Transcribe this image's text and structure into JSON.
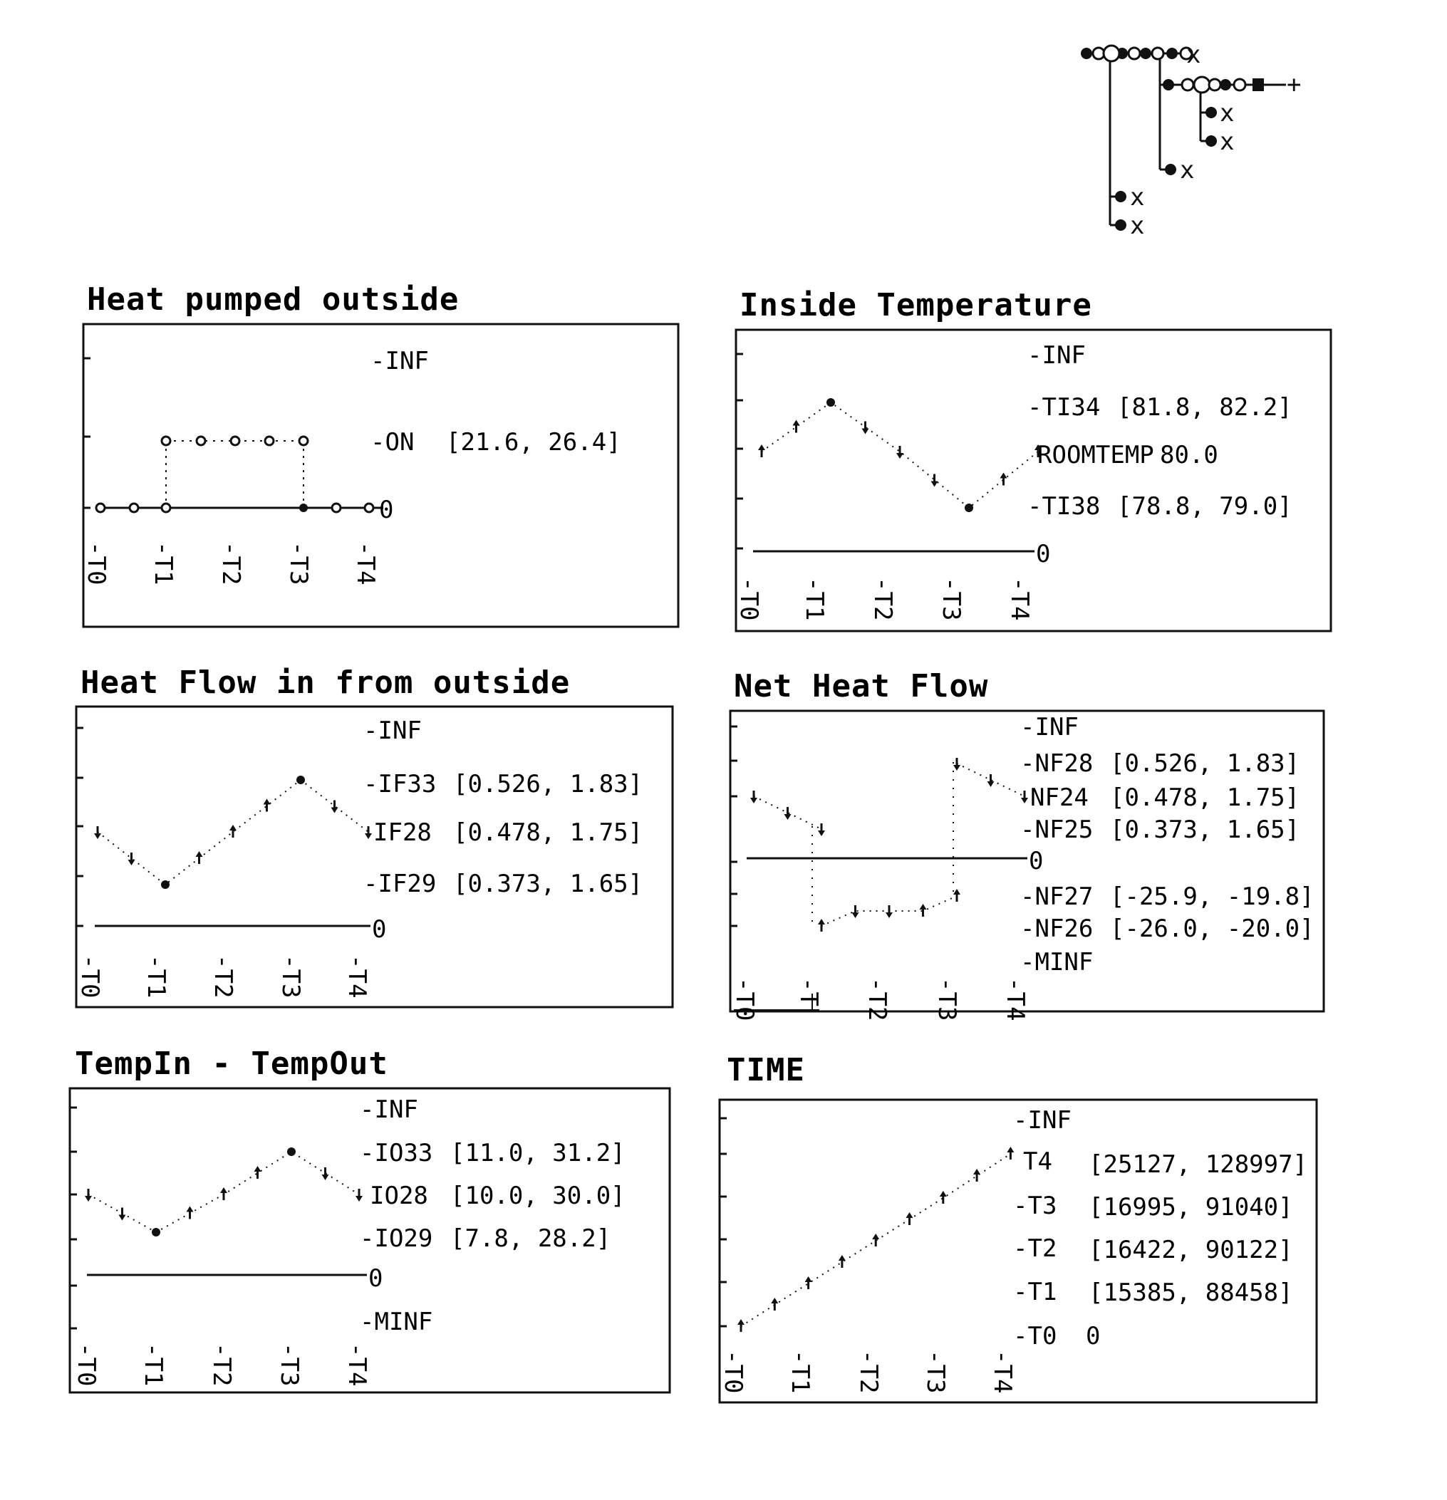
{
  "tree_markers": [
    "x",
    "+",
    "x",
    "x",
    "x",
    "x",
    "x"
  ],
  "panels": [
    {
      "id": "heat-pumped-outside",
      "title": "Heat pumped outside",
      "labels": [
        "-INF",
        "-ON",
        "[21.6, 26.4]",
        "0"
      ],
      "times": [
        "-T0",
        "-T1",
        "-T2",
        "-T3",
        "-T4"
      ]
    },
    {
      "id": "inside-temperature",
      "title": "Inside Temperature",
      "labels": [
        "-INF",
        "-TI34",
        "[81.8, 82.2]",
        "ROOMTEMP",
        "80.0",
        "-TI38",
        "[78.8, 79.0]",
        "0"
      ],
      "times": [
        "-T0",
        "-T1",
        "-T2",
        "-T3",
        "-T4"
      ]
    },
    {
      "id": "heat-flow-in",
      "title": "Heat Flow in from outside",
      "labels": [
        "-INF",
        "-IF33",
        "[0.526, 1.83]",
        "IF28",
        "[0.478, 1.75]",
        "-IF29",
        "[0.373, 1.65]",
        "0"
      ],
      "times": [
        "-T0",
        "-T1",
        "-T2",
        "-T3",
        "-T4"
      ]
    },
    {
      "id": "net-heat-flow",
      "title": "Net Heat Flow",
      "labels": [
        "-INF",
        "-NF28",
        "[0.526, 1.83]",
        "NF24",
        "[0.478, 1.75]",
        "-NF25",
        "[0.373, 1.65]",
        "0",
        "-NF27",
        "[-25.9, -19.8]",
        "-NF26",
        "[-26.0, -20.0]",
        "-MINF"
      ],
      "times": [
        "-T0",
        "-T",
        "-T2",
        "-T3",
        "-T4"
      ]
    },
    {
      "id": "tempin-tempout",
      "title": "TempIn - TempOut",
      "labels": [
        "-INF",
        "-IO33",
        "[11.0, 31.2]",
        "IO28",
        "[10.0, 30.0]",
        "-IO29",
        "[7.8, 28.2]",
        "0",
        "-MINF"
      ],
      "times": [
        "-T0",
        "-T1",
        "-T2",
        "-T3",
        "-T4"
      ]
    },
    {
      "id": "time",
      "title": "TIME",
      "labels": [
        "-INF",
        "T4",
        "[25127, 128997]",
        "-T3",
        "[16995, 91040]",
        "-T2",
        "[16422, 90122]",
        "-T1",
        "[15385, 88458]",
        "-T0",
        "0"
      ],
      "times": [
        "-T0",
        "-T1",
        "-T2",
        "-T3",
        "-T4"
      ]
    }
  ],
  "chart_data": [
    {
      "type": "line",
      "title": "Heat pumped outside",
      "x": [
        "T0",
        "",
        "T1",
        "",
        "",
        "",
        "T3",
        "",
        "T4"
      ],
      "y_levels": [
        "0",
        "ON",
        "INF"
      ],
      "series": [
        {
          "values": [
            "0",
            "0",
            "0",
            "0",
            "0",
            "0",
            "0",
            "0",
            "0"
          ]
        },
        {
          "values": [
            null,
            null,
            "ON",
            "ON",
            "ON",
            "ON",
            "ON",
            null,
            null
          ]
        }
      ]
    },
    {
      "type": "line",
      "title": "Inside Temperature",
      "x": [
        "T0",
        "",
        "T1",
        "",
        "",
        "",
        "T3",
        "",
        "T4"
      ],
      "y_levels": [
        "0",
        "TI38",
        "ROOMTEMP",
        "TI34",
        "INF"
      ],
      "series": [
        {
          "values": [
            "ROOMTEMP",
            "ROOMTEMP-TI34",
            "TI34",
            "TI34-ROOMTEMP",
            "ROOMTEMP",
            "ROOMTEMP-TI38",
            "TI38",
            "TI38-ROOMTEMP",
            "ROOMTEMP"
          ]
        }
      ]
    },
    {
      "type": "line",
      "title": "Heat Flow in from outside",
      "x": [
        "T0",
        "",
        "T1",
        "",
        "",
        "",
        "T3",
        "",
        "T4"
      ],
      "y_levels": [
        "0",
        "IF29",
        "IF28",
        "IF33",
        "INF"
      ],
      "series": [
        {
          "values": [
            "IF28",
            "IF28-IF29",
            "IF29",
            "IF29-IF28",
            "IF28",
            "IF28-IF33",
            "IF33",
            "IF33-IF28",
            "IF28"
          ]
        }
      ]
    },
    {
      "type": "line",
      "title": "Net Heat Flow",
      "x": [
        "T0",
        "",
        "T1",
        "",
        "",
        "",
        "T3",
        "",
        "T4"
      ],
      "y_levels": [
        "MINF",
        "NF26",
        "NF27",
        "0",
        "NF25",
        "NF24",
        "NF28",
        "INF"
      ],
      "series": [
        {
          "values": [
            "NF24",
            "NF24-NF25",
            "NF25",
            null,
            null,
            null,
            null,
            null,
            null
          ]
        },
        {
          "values": [
            null,
            null,
            "NF26",
            "NF26-NF27",
            "NF26-NF27",
            "NF26-NF27",
            "NF27",
            null,
            null
          ]
        },
        {
          "values": [
            null,
            null,
            null,
            null,
            null,
            null,
            "NF28",
            "NF28-NF24",
            "NF24"
          ]
        }
      ]
    },
    {
      "type": "line",
      "title": "TempIn - TempOut",
      "x": [
        "T0",
        "",
        "T1",
        "",
        "",
        "",
        "T3",
        "",
        "T4"
      ],
      "y_levels": [
        "MINF",
        "0",
        "IO29",
        "IO28",
        "IO33",
        "INF"
      ],
      "series": [
        {
          "values": [
            "IO28",
            "IO28-IO29",
            "IO29",
            "IO29-IO28",
            "IO28",
            "IO28-IO33",
            "IO33",
            "IO33-IO28",
            "IO28"
          ]
        }
      ]
    },
    {
      "type": "line",
      "title": "TIME",
      "x": [
        "T0",
        "",
        "T1",
        "",
        "T2",
        "",
        "T3",
        "",
        "T4"
      ],
      "y_levels": [
        "T0",
        "T1",
        "T2",
        "T3",
        "T4",
        "INF"
      ],
      "series": [
        {
          "values": [
            "T0",
            "T0-T1",
            "T1",
            "T1-T2",
            "T2",
            "T2-T3",
            "T3",
            "T3-T4",
            "T4"
          ]
        }
      ]
    }
  ]
}
